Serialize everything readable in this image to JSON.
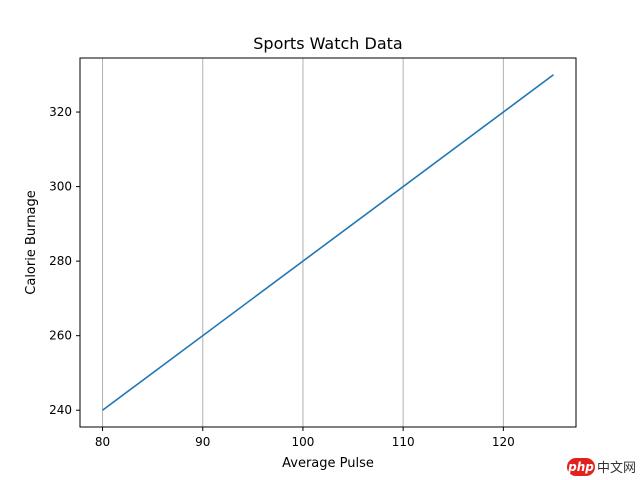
{
  "chart_data": {
    "type": "line",
    "title": "Sports Watch Data",
    "xlabel": "Average Pulse",
    "ylabel": "Calorie Burnage",
    "x": [
      80,
      125
    ],
    "series": [
      {
        "values": [
          240,
          330
        ],
        "color": "#1f77b4"
      }
    ],
    "xlim": [
      77.75,
      127.25
    ],
    "ylim": [
      235.5,
      334.5
    ],
    "xticks": [
      80,
      90,
      100,
      110,
      120
    ],
    "yticks": [
      240,
      260,
      280,
      300,
      320
    ],
    "grid": "x-only",
    "legend": "none"
  },
  "watermark": {
    "logo_text": "php",
    "site_text": "中文网",
    "logo_color": "#e0211c"
  }
}
